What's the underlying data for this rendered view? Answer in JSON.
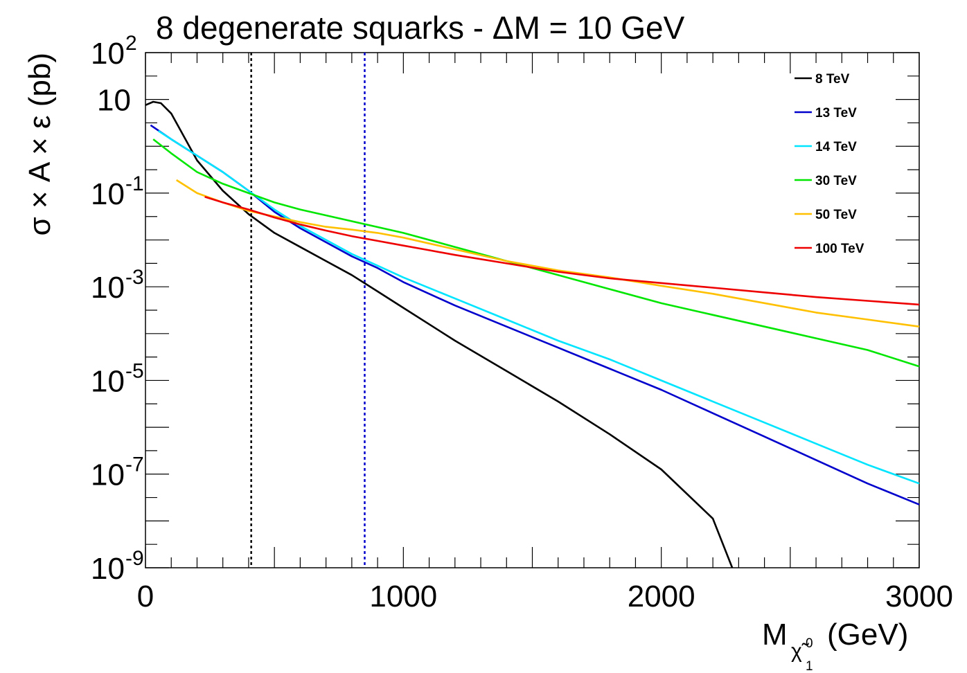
{
  "chart_data": {
    "type": "line",
    "title": "8 degenerate squarks - ΔM = 10 GeV",
    "ylabel": "σ × A × ε (pb)",
    "xlabel": {
      "main": "M",
      "sub": "χ̃",
      "sub_sub": "1",
      "sub_sup": "0",
      "unit": "(GeV)"
    },
    "xlim": [
      0,
      3000
    ],
    "ylim_log10": [
      -9,
      2
    ],
    "y_scale": "log",
    "x_ticks": [
      0,
      1000,
      2000,
      3000
    ],
    "x_tick_labels": [
      "0",
      "1000",
      "2000",
      "3000"
    ],
    "y_ticks": [
      {
        "exp": 2,
        "base": "10",
        "sup": "2"
      },
      {
        "exp": 1,
        "base": "10",
        "sup": ""
      },
      {
        "exp": -1,
        "base": "10",
        "sup": "-1"
      },
      {
        "exp": -3,
        "base": "10",
        "sup": "-3"
      },
      {
        "exp": -5,
        "base": "10",
        "sup": "-5"
      },
      {
        "exp": -7,
        "base": "10",
        "sup": "-7"
      },
      {
        "exp": -9,
        "base": "10",
        "sup": "-9"
      }
    ],
    "vlines": [
      {
        "x": 410,
        "color": "#000000",
        "style": "dotted"
      },
      {
        "x": 850,
        "color": "#0000cc",
        "style": "dotted"
      }
    ],
    "legend_position": "top-right",
    "series": [
      {
        "name": "8 TeV",
        "color": "#000000",
        "x": [
          0,
          30,
          60,
          100,
          200,
          300,
          400,
          500,
          600,
          700,
          800,
          900,
          1000,
          1100,
          1200,
          1400,
          1600,
          1800,
          2000,
          2200,
          2275
        ],
        "log10y": [
          0.88,
          0.95,
          0.92,
          0.7,
          -0.3,
          -0.95,
          -1.45,
          -1.85,
          -2.15,
          -2.45,
          -2.75,
          -3.1,
          -3.45,
          -3.8,
          -4.15,
          -4.8,
          -5.45,
          -6.15,
          -6.9,
          -7.95,
          -9
        ]
      },
      {
        "name": "13 TeV",
        "color": "#0000cc",
        "x": [
          20,
          100,
          200,
          300,
          400,
          500,
          600,
          700,
          800,
          900,
          1000,
          1200,
          1400,
          1600,
          1800,
          2000,
          2200,
          2400,
          2600,
          2800,
          3000
        ],
        "log10y": [
          0.45,
          0.15,
          -0.2,
          -0.55,
          -0.95,
          -1.4,
          -1.75,
          -2.05,
          -2.35,
          -2.6,
          -2.9,
          -3.4,
          -3.85,
          -4.3,
          -4.75,
          -5.2,
          -5.7,
          -6.2,
          -6.7,
          -7.2,
          -7.65
        ]
      },
      {
        "name": "14 TeV",
        "color": "#00e5ff",
        "x": [
          50,
          100,
          200,
          300,
          400,
          500,
          600,
          700,
          800,
          900,
          1000,
          1200,
          1400,
          1600,
          1800,
          2000,
          2200,
          2400,
          2600,
          2800,
          3000
        ],
        "log10y": [
          0.33,
          0.15,
          -0.2,
          -0.55,
          -0.95,
          -1.35,
          -1.7,
          -2.0,
          -2.3,
          -2.55,
          -2.8,
          -3.25,
          -3.7,
          -4.15,
          -4.55,
          -5.0,
          -5.45,
          -5.9,
          -6.35,
          -6.8,
          -7.2
        ]
      },
      {
        "name": "30 TeV",
        "color": "#00e600",
        "x": [
          30,
          100,
          200,
          300,
          400,
          500,
          600,
          800,
          1000,
          1200,
          1400,
          1600,
          1800,
          2000,
          2200,
          2400,
          2600,
          2800,
          3000
        ],
        "log10y": [
          0.15,
          -0.15,
          -0.55,
          -0.8,
          -1.0,
          -1.2,
          -1.35,
          -1.6,
          -1.85,
          -2.15,
          -2.45,
          -2.75,
          -3.05,
          -3.35,
          -3.6,
          -3.85,
          -4.1,
          -4.35,
          -4.7
        ]
      },
      {
        "name": "50 TeV",
        "color": "#ffc000",
        "x": [
          120,
          200,
          300,
          400,
          500,
          600,
          700,
          800,
          900,
          1000,
          1200,
          1400,
          1600,
          1800,
          2000,
          2200,
          2450,
          2600,
          2800,
          3000
        ],
        "log10y": [
          -0.72,
          -1.0,
          -1.2,
          -1.38,
          -1.5,
          -1.62,
          -1.72,
          -1.78,
          -1.85,
          -1.95,
          -2.2,
          -2.45,
          -2.65,
          -2.8,
          -2.98,
          -3.15,
          -3.4,
          -3.55,
          -3.7,
          -3.85
        ]
      },
      {
        "name": "100 TeV",
        "color": "#ee0000",
        "x": [
          230,
          300,
          400,
          500,
          600,
          700,
          800,
          900,
          1000,
          1100,
          1200,
          1400,
          1600,
          1800,
          2000,
          2200,
          2400,
          2600,
          2800,
          3000
        ],
        "log10y": [
          -1.08,
          -1.2,
          -1.35,
          -1.52,
          -1.67,
          -1.8,
          -1.92,
          -2.02,
          -2.12,
          -2.22,
          -2.32,
          -2.5,
          -2.68,
          -2.82,
          -2.92,
          -3.02,
          -3.12,
          -3.22,
          -3.3,
          -3.38
        ]
      }
    ]
  }
}
